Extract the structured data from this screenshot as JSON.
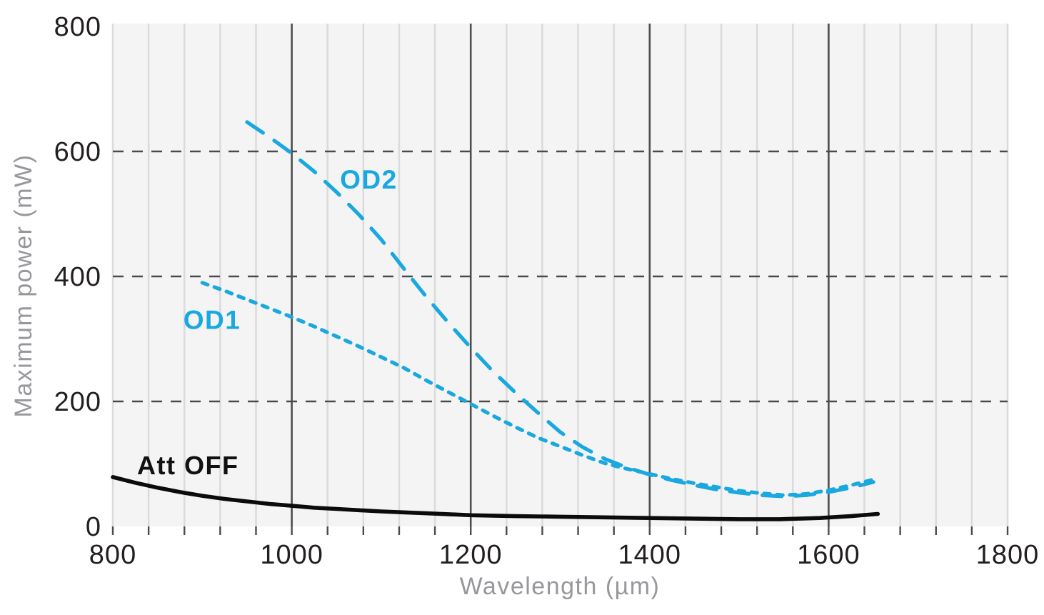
{
  "figure": {
    "background": "#ffffff"
  },
  "chart_data": {
    "type": "line",
    "title": "",
    "xlabel": "Wavelength (µm)",
    "ylabel": "Maximum power (mW)",
    "xlim": [
      800,
      1800
    ],
    "ylim": [
      0,
      800
    ],
    "xticks": [
      800,
      1000,
      1200,
      1400,
      1600,
      1800
    ],
    "yticks": [
      0,
      200,
      400,
      600,
      800
    ],
    "x_minor_step": 40,
    "major_vlines_x": [
      1000,
      1200,
      1400,
      1600
    ],
    "dashed_hlines_y": [
      200,
      400,
      600
    ],
    "grid": {
      "plot_background": "#f5f4f4",
      "minor_vline_color": "#dcdbdb",
      "major_vline_color": "#4d4d4d",
      "dashed_hline_color": "#4a4a4a",
      "tick_mark_color": "#4a4a4a",
      "tick_label_color": "#231f20",
      "axis_title_color": "#98979c"
    },
    "legend_position": "inline-labels",
    "series": [
      {
        "name": "Att OFF",
        "color": "#0b0b0b",
        "style": "solid",
        "points": [
          [
            800,
            79
          ],
          [
            825,
            70
          ],
          [
            850,
            62
          ],
          [
            875,
            55
          ],
          [
            900,
            49
          ],
          [
            925,
            44
          ],
          [
            950,
            40
          ],
          [
            975,
            36
          ],
          [
            1000,
            33
          ],
          [
            1025,
            30
          ],
          [
            1050,
            28
          ],
          [
            1075,
            26
          ],
          [
            1100,
            24
          ],
          [
            1125,
            22.5
          ],
          [
            1150,
            21
          ],
          [
            1175,
            19.5
          ],
          [
            1200,
            18
          ],
          [
            1250,
            16.5
          ],
          [
            1300,
            15.5
          ],
          [
            1350,
            14.5
          ],
          [
            1400,
            13.5
          ],
          [
            1450,
            12.5
          ],
          [
            1500,
            11.5
          ],
          [
            1545,
            11.5
          ],
          [
            1590,
            13.5
          ],
          [
            1625,
            16.5
          ],
          [
            1655,
            20
          ]
        ]
      },
      {
        "name": "OD1",
        "color": "#19a8e0",
        "style": "dotted",
        "points": [
          [
            900,
            390
          ],
          [
            925,
            377
          ],
          [
            950,
            363
          ],
          [
            975,
            349
          ],
          [
            1000,
            335
          ],
          [
            1025,
            320
          ],
          [
            1050,
            304
          ],
          [
            1075,
            288
          ],
          [
            1100,
            271
          ],
          [
            1125,
            254
          ],
          [
            1150,
            234
          ],
          [
            1175,
            215
          ],
          [
            1200,
            196
          ],
          [
            1225,
            177
          ],
          [
            1250,
            159
          ],
          [
            1275,
            142
          ],
          [
            1300,
            128
          ],
          [
            1325,
            114
          ],
          [
            1350,
            101
          ],
          [
            1375,
            92
          ],
          [
            1400,
            84
          ],
          [
            1425,
            76
          ],
          [
            1450,
            69
          ],
          [
            1475,
            63
          ],
          [
            1500,
            57
          ],
          [
            1525,
            53
          ],
          [
            1550,
            50
          ],
          [
            1575,
            52
          ],
          [
            1600,
            58
          ],
          [
            1625,
            66
          ],
          [
            1650,
            75
          ]
        ]
      },
      {
        "name": "OD2",
        "color": "#19a8e0",
        "style": "long-dash",
        "points": [
          [
            950,
            647
          ],
          [
            975,
            623
          ],
          [
            1000,
            597
          ],
          [
            1025,
            568
          ],
          [
            1050,
            535
          ],
          [
            1075,
            499
          ],
          [
            1100,
            459
          ],
          [
            1125,
            413
          ],
          [
            1150,
            368
          ],
          [
            1175,
            326
          ],
          [
            1200,
            286
          ],
          [
            1225,
            248
          ],
          [
            1250,
            214
          ],
          [
            1275,
            182
          ],
          [
            1300,
            151
          ],
          [
            1325,
            127
          ],
          [
            1350,
            108
          ],
          [
            1375,
            94
          ],
          [
            1400,
            83
          ],
          [
            1425,
            74
          ],
          [
            1450,
            66
          ],
          [
            1475,
            59
          ],
          [
            1500,
            54
          ],
          [
            1525,
            50
          ],
          [
            1550,
            48
          ],
          [
            1575,
            50
          ],
          [
            1600,
            55
          ],
          [
            1625,
            62
          ],
          [
            1650,
            71
          ]
        ]
      }
    ],
    "annotations": [
      {
        "text": "OD2",
        "x": 1086,
        "y": 556,
        "color": "#19a8e0",
        "font_size": 37
      },
      {
        "text": "OD1",
        "x": 911,
        "y": 331,
        "color": "#19a8e0",
        "font_size": 37
      },
      {
        "text": "Att OFF",
        "x": 884,
        "y": 98,
        "color": "#111111",
        "font_size": 36
      }
    ]
  }
}
